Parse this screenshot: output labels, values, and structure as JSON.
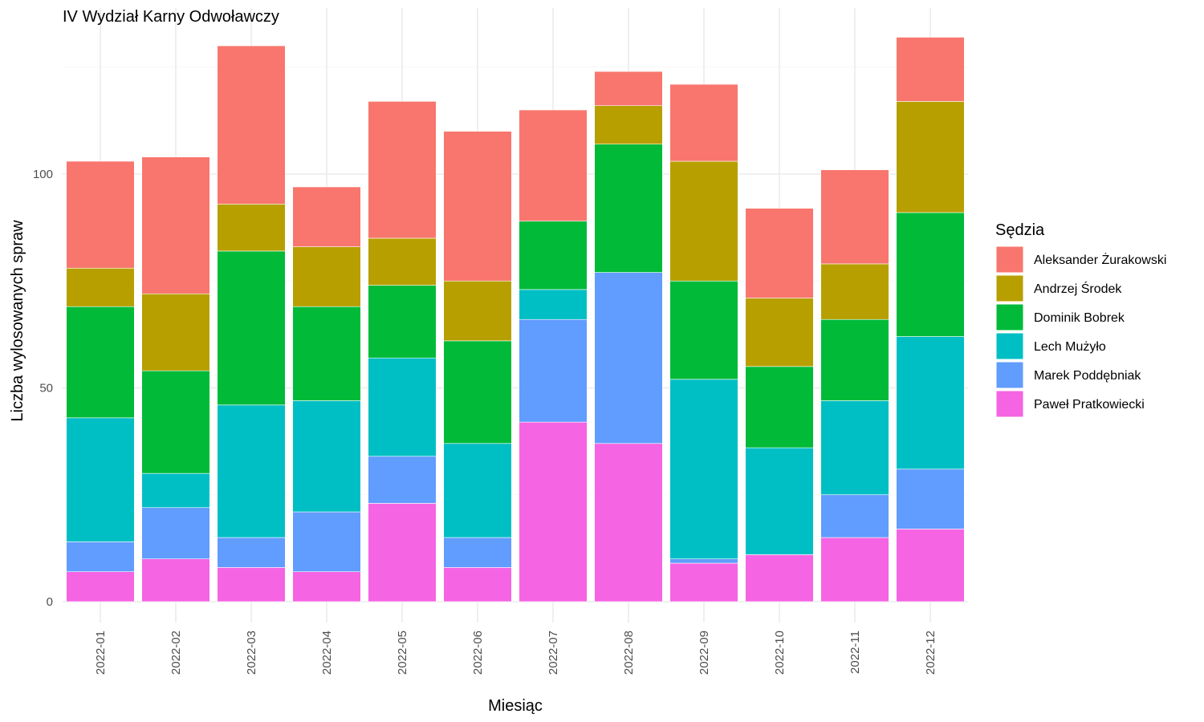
{
  "chart_data": {
    "type": "bar",
    "stacked": true,
    "title": "IV Wydział Karny Odwoławczy",
    "xlabel": "Miesiąc",
    "ylabel": "Liczba wylosowanych spraw",
    "ylim": [
      0,
      136
    ],
    "yticks": [
      0,
      50,
      100
    ],
    "grid": true,
    "legend": {
      "title": "Sędzia",
      "placement": "right"
    },
    "categories": [
      "2022-01",
      "2022-02",
      "2022-03",
      "2022-04",
      "2022-05",
      "2022-06",
      "2022-07",
      "2022-08",
      "2022-09",
      "2022-10",
      "2022-11",
      "2022-12"
    ],
    "series": [
      {
        "name": "Paweł Pratkowiecki",
        "color": "#F564E3",
        "values": [
          7,
          10,
          8,
          7,
          23,
          8,
          42,
          37,
          9,
          11,
          15,
          17
        ]
      },
      {
        "name": "Marek Poddębniak",
        "color": "#619CFF",
        "values": [
          7,
          12,
          7,
          14,
          11,
          7,
          24,
          40,
          1,
          0,
          10,
          14
        ]
      },
      {
        "name": "Lech Mużyło",
        "color": "#00BFC4",
        "values": [
          29,
          8,
          31,
          26,
          23,
          22,
          7,
          0,
          42,
          25,
          22,
          31
        ]
      },
      {
        "name": "Dominik Bobrek",
        "color": "#00BA38",
        "values": [
          26,
          24,
          36,
          22,
          17,
          24,
          16,
          30,
          23,
          19,
          19,
          29
        ]
      },
      {
        "name": "Andrzej Środek",
        "color": "#B79F00",
        "values": [
          9,
          18,
          11,
          14,
          11,
          14,
          0,
          9,
          28,
          16,
          13,
          26
        ]
      },
      {
        "name": "Aleksander Żurakowski",
        "color": "#F8766D",
        "values": [
          25,
          32,
          37,
          14,
          32,
          35,
          26,
          8,
          18,
          21,
          22,
          15
        ]
      }
    ],
    "legend_order": [
      "Aleksander Żurakowski",
      "Andrzej Środek",
      "Dominik Bobrek",
      "Lech Mużyło",
      "Marek Poddębniak",
      "Paweł Pratkowiecki"
    ]
  }
}
